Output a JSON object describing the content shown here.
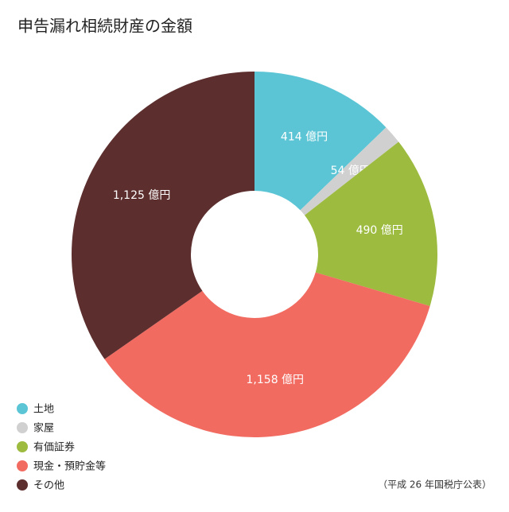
{
  "chart_data": {
    "type": "pie",
    "title": "申告漏れ相続財産の金額",
    "categories": [
      "土地",
      "家屋",
      "有価証券",
      "現金・預貯金等",
      "その他"
    ],
    "values": [
      414,
      54,
      490,
      1158,
      1125
    ],
    "value_labels": [
      "414 億円",
      "54 億円",
      "490 億円",
      "1,158 億円",
      "1,125 億円"
    ],
    "colors": [
      "#5bc5d5",
      "#d0d0d0",
      "#9cbb3f",
      "#f26b61",
      "#5c2e2e"
    ],
    "source": "（平成 26 年国税庁公表）"
  }
}
